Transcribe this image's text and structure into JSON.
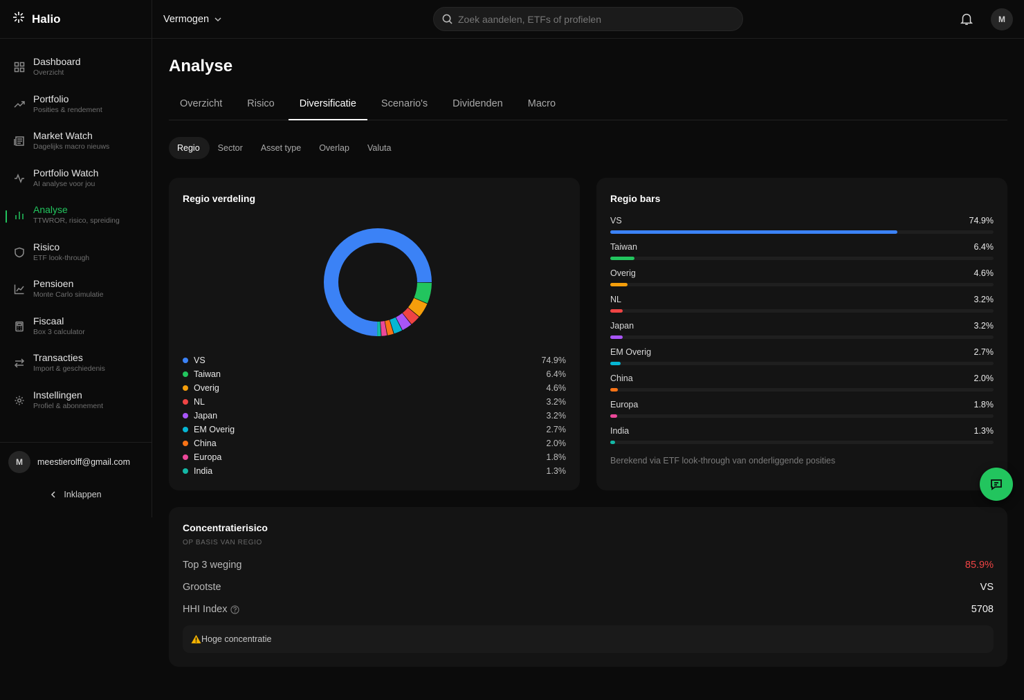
{
  "brand": {
    "name": "Halio"
  },
  "header": {
    "vault_label": "Vermogen",
    "search_placeholder": "Zoek aandelen, ETFs of profielen",
    "avatar_initial": "M"
  },
  "sidebar": {
    "items": [
      {
        "label": "Dashboard",
        "sub": "Overzicht",
        "icon": "grid-icon"
      },
      {
        "label": "Portfolio",
        "sub": "Posities & rendement",
        "icon": "trend-up-icon"
      },
      {
        "label": "Market Watch",
        "sub": "Dagelijks macro nieuws",
        "icon": "newspaper-icon"
      },
      {
        "label": "Portfolio Watch",
        "sub": "AI analyse voor jou",
        "icon": "activity-icon"
      },
      {
        "label": "Analyse",
        "sub": "TTWROR, risico, spreiding",
        "icon": "bar-chart-icon"
      },
      {
        "label": "Risico",
        "sub": "ETF look-through",
        "icon": "shield-icon"
      },
      {
        "label": "Pensioen",
        "sub": "Monte Carlo simulatie",
        "icon": "line-chart-icon"
      },
      {
        "label": "Fiscaal",
        "sub": "Box 3 calculator",
        "icon": "calculator-icon"
      },
      {
        "label": "Transacties",
        "sub": "Import & geschiedenis",
        "icon": "arrows-icon"
      },
      {
        "label": "Instellingen",
        "sub": "Profiel & abonnement",
        "icon": "gear-icon"
      }
    ],
    "user_initial": "M",
    "user_email": "meestierolff@gmail.com",
    "collapse_label": "Inklappen"
  },
  "page": {
    "title": "Analyse",
    "tabs": [
      "Overzicht",
      "Risico",
      "Diversificatie",
      "Scenario's",
      "Dividenden",
      "Macro"
    ],
    "subtabs": [
      "Regio",
      "Sector",
      "Asset type",
      "Overlap",
      "Valuta"
    ]
  },
  "chart_data": {
    "type": "pie",
    "title": "Regio verdeling",
    "categories": [
      "VS",
      "Taiwan",
      "Overig",
      "NL",
      "Japan",
      "EM Overig",
      "China",
      "Europa",
      "India"
    ],
    "values": [
      74.9,
      6.4,
      4.6,
      3.2,
      3.2,
      2.7,
      2.0,
      1.8,
      1.3
    ],
    "labels": [
      "74.9%",
      "6.4%",
      "4.6%",
      "3.2%",
      "3.2%",
      "2.7%",
      "2.0%",
      "1.8%",
      "1.3%"
    ],
    "colors": [
      "#3b82f6",
      "#22c55e",
      "#f59e0b",
      "#ef4444",
      "#a855f7",
      "#06b6d4",
      "#f97316",
      "#ec4899",
      "#14b8a6"
    ],
    "legend": "bottom"
  },
  "bars_card": {
    "title": "Regio bars",
    "note": "Berekend via ETF look-through van onderliggende posities"
  },
  "concentration": {
    "title": "Concentratierisico",
    "subtitle": "OP BASIS VAN REGIO",
    "top3_label": "Top 3 weging",
    "top3_value": "85.9%",
    "largest_label": "Grootste",
    "largest_value": "VS",
    "hhi_label": "HHI Index",
    "hhi_value": "5708",
    "warning": "Hoge concentratie"
  }
}
